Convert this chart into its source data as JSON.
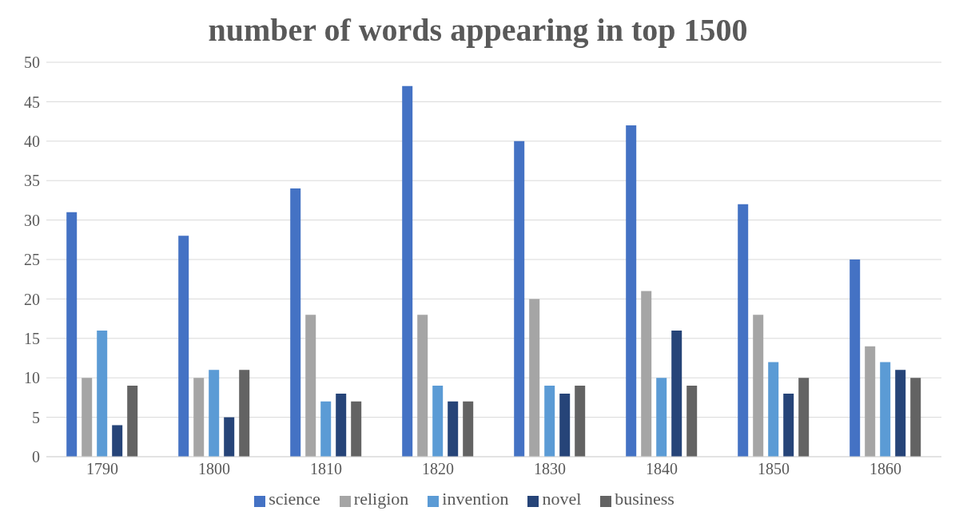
{
  "chart_data": {
    "type": "bar",
    "title": "number of words appearing in top 1500",
    "categories": [
      "1790",
      "1800",
      "1810",
      "1820",
      "1830",
      "1840",
      "1850",
      "1860"
    ],
    "series": [
      {
        "name": "science",
        "color": "#4472c4",
        "values": [
          31,
          28,
          34,
          47,
          40,
          42,
          32,
          25
        ]
      },
      {
        "name": "religion",
        "color": "#a5a5a5",
        "values": [
          10,
          10,
          18,
          18,
          20,
          21,
          18,
          14
        ]
      },
      {
        "name": "invention",
        "color": "#5b9bd5",
        "values": [
          16,
          11,
          7,
          9,
          9,
          10,
          12,
          12
        ]
      },
      {
        "name": "novel",
        "color": "#264478",
        "values": [
          4,
          5,
          8,
          7,
          8,
          16,
          8,
          11
        ]
      },
      {
        "name": "business",
        "color": "#636363",
        "values": [
          9,
          11,
          7,
          7,
          9,
          9,
          10,
          10
        ]
      }
    ],
    "ylim": [
      0,
      50
    ],
    "yticks": [
      0,
      5,
      10,
      15,
      20,
      25,
      30,
      35,
      40,
      45,
      50
    ],
    "grid": "y",
    "legend": "bottom"
  }
}
